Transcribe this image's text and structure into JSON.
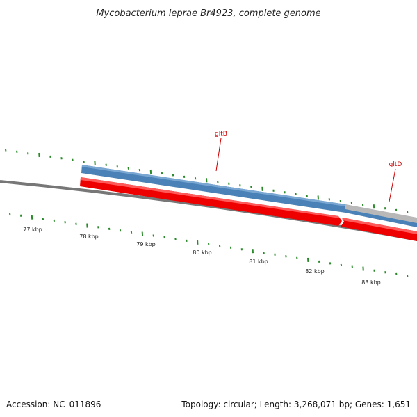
{
  "title": "Mycobacterium leprae Br4923, complete genome",
  "footer": {
    "accession": "Accession: NC_011896",
    "summary": "Topology: circular; Length: 3,268,071 bp; Genes: 1,651"
  },
  "colors": {
    "backbone": "#777777",
    "tick": "#2a8a2a",
    "forward_gene": "#4a82b8",
    "forward_gene_light": "#7aa6d2",
    "reverse_gene": "#ee0000",
    "reverse_gene_light": "#ff5a5a",
    "other_gene": "#b8b8b8",
    "gene_label": "#cc0000"
  },
  "axis": {
    "unit": "kbp",
    "labels": [
      "77 kbp",
      "78 kbp",
      "79 kbp",
      "80 kbp",
      "81 kbp",
      "82 kbp",
      "83 kbp"
    ]
  },
  "genes": [
    {
      "name": "gltB",
      "strand": "forward"
    },
    {
      "name": "gltD",
      "strand": "forward"
    }
  ]
}
